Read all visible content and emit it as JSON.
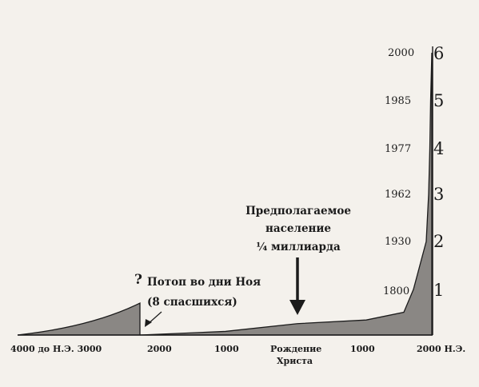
{
  "chart_data": {
    "type": "area",
    "x_tick_labels": [
      "4000 до Н.Э. 3000",
      "2000",
      "1000",
      "Рождение",
      "Христа",
      "1000",
      "2000 Н.Э."
    ],
    "y_right_ticks": [
      {
        "year": "1800",
        "value": "1"
      },
      {
        "year": "1930",
        "value": "2"
      },
      {
        "year": "1962",
        "value": "3"
      },
      {
        "year": "1977",
        "value": "4"
      },
      {
        "year": "1985",
        "value": "5"
      },
      {
        "year": "2000",
        "value": "6"
      }
    ],
    "ylim": [
      0,
      6
    ],
    "pre_flood": {
      "x": [
        -4000,
        -2350
      ],
      "y": [
        0,
        0.7
      ]
    },
    "post_flood": {
      "x": [
        -2350,
        -1000,
        0,
        1000,
        1600,
        1800,
        1930,
        1962,
        1977,
        1985,
        2000
      ],
      "y": [
        0,
        0.08,
        0.25,
        0.33,
        0.5,
        1,
        2,
        3,
        4,
        5,
        6
      ]
    },
    "annotations": {
      "question_mark": "?",
      "flood_line1": "Потоп во дни Ноя",
      "flood_line2": "(8 спасшихся)",
      "estimate_line1": "Предполагаемое",
      "estimate_line2": "население",
      "estimate_line3": "¼ миллиарда"
    }
  }
}
